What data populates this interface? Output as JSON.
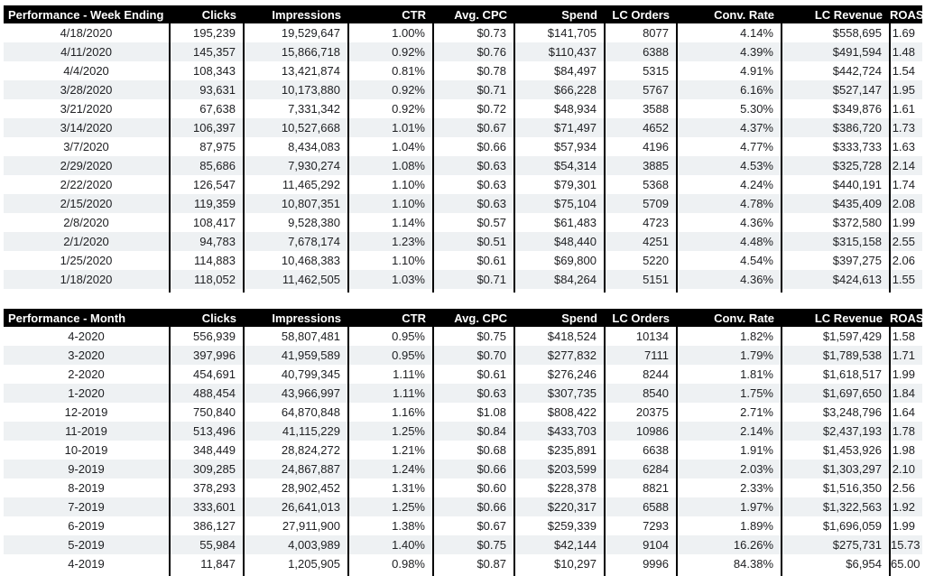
{
  "colors": {
    "header_bg": "#000000",
    "header_text": "#ffffff",
    "row_bg": "#ffffff",
    "row_alt": "#eef1f3",
    "grid_line": "#000000"
  },
  "chart_data": [
    {
      "type": "table",
      "title": "Performance - Week Ending",
      "columns": [
        "Clicks",
        "Impressions",
        "CTR",
        "Avg. CPC",
        "Spend",
        "LC Orders",
        "Conv. Rate",
        "LC Revenue",
        "ROAS"
      ],
      "rows": [
        [
          "4/18/2020",
          "195,239",
          "19,529,647",
          "1.00%",
          "$0.73",
          "$141,705",
          "8077",
          "4.14%",
          "$558,695",
          "1.69"
        ],
        [
          "4/11/2020",
          "145,357",
          "15,866,718",
          "0.92%",
          "$0.76",
          "$110,437",
          "6388",
          "4.39%",
          "$491,594",
          "1.48"
        ],
        [
          "4/4/2020",
          "108,343",
          "13,421,874",
          "0.81%",
          "$0.78",
          "$84,497",
          "5315",
          "4.91%",
          "$442,724",
          "1.54"
        ],
        [
          "3/28/2020",
          "93,631",
          "10,173,880",
          "0.92%",
          "$0.71",
          "$66,228",
          "5767",
          "6.16%",
          "$527,147",
          "1.95"
        ],
        [
          "3/21/2020",
          "67,638",
          "7,331,342",
          "0.92%",
          "$0.72",
          "$48,934",
          "3588",
          "5.30%",
          "$349,876",
          "1.61"
        ],
        [
          "3/14/2020",
          "106,397",
          "10,527,668",
          "1.01%",
          "$0.67",
          "$71,497",
          "4652",
          "4.37%",
          "$386,720",
          "1.73"
        ],
        [
          "3/7/2020",
          "87,975",
          "8,434,083",
          "1.04%",
          "$0.66",
          "$57,934",
          "4196",
          "4.77%",
          "$333,733",
          "1.63"
        ],
        [
          "2/29/2020",
          "85,686",
          "7,930,274",
          "1.08%",
          "$0.63",
          "$54,314",
          "3885",
          "4.53%",
          "$325,728",
          "2.14"
        ],
        [
          "2/22/2020",
          "126,547",
          "11,465,292",
          "1.10%",
          "$0.63",
          "$79,301",
          "5368",
          "4.24%",
          "$440,191",
          "1.74"
        ],
        [
          "2/15/2020",
          "119,359",
          "10,807,351",
          "1.10%",
          "$0.63",
          "$75,104",
          "5709",
          "4.78%",
          "$435,409",
          "2.08"
        ],
        [
          "2/8/2020",
          "108,417",
          "9,528,380",
          "1.14%",
          "$0.57",
          "$61,483",
          "4723",
          "4.36%",
          "$372,580",
          "1.99"
        ],
        [
          "2/1/2020",
          "94,783",
          "7,678,174",
          "1.23%",
          "$0.51",
          "$48,440",
          "4251",
          "4.48%",
          "$315,158",
          "2.55"
        ],
        [
          "1/25/2020",
          "114,883",
          "10,468,383",
          "1.10%",
          "$0.61",
          "$69,800",
          "5220",
          "4.54%",
          "$397,275",
          "2.06"
        ],
        [
          "1/18/2020",
          "118,052",
          "11,462,505",
          "1.03%",
          "$0.71",
          "$84,264",
          "5151",
          "4.36%",
          "$424,613",
          "1.55"
        ]
      ]
    },
    {
      "type": "table",
      "title": "Performance - Month",
      "columns": [
        "Clicks",
        "Impressions",
        "CTR",
        "Avg. CPC",
        "Spend",
        "LC Orders",
        "Conv. Rate",
        "LC Revenue",
        "ROAS"
      ],
      "rows": [
        [
          "4-2020",
          "556,939",
          "58,807,481",
          "0.95%",
          "$0.75",
          "$418,524",
          "10134",
          "1.82%",
          "$1,597,429",
          "1.58"
        ],
        [
          "3-2020",
          "397,996",
          "41,959,589",
          "0.95%",
          "$0.70",
          "$277,832",
          "7111",
          "1.79%",
          "$1,789,538",
          "1.71"
        ],
        [
          "2-2020",
          "454,691",
          "40,799,345",
          "1.11%",
          "$0.61",
          "$276,246",
          "8244",
          "1.81%",
          "$1,618,517",
          "1.99"
        ],
        [
          "1-2020",
          "488,454",
          "43,966,997",
          "1.11%",
          "$0.63",
          "$307,735",
          "8540",
          "1.75%",
          "$1,697,650",
          "1.84"
        ],
        [
          "12-2019",
          "750,840",
          "64,870,848",
          "1.16%",
          "$1.08",
          "$808,422",
          "20375",
          "2.71%",
          "$3,248,796",
          "1.64"
        ],
        [
          "11-2019",
          "513,496",
          "41,115,229",
          "1.25%",
          "$0.84",
          "$433,703",
          "10986",
          "2.14%",
          "$2,437,193",
          "1.78"
        ],
        [
          "10-2019",
          "348,449",
          "28,824,272",
          "1.21%",
          "$0.68",
          "$235,891",
          "6638",
          "1.91%",
          "$1,453,926",
          "1.98"
        ],
        [
          "9-2019",
          "309,285",
          "24,867,887",
          "1.24%",
          "$0.66",
          "$203,599",
          "6284",
          "2.03%",
          "$1,303,297",
          "2.10"
        ],
        [
          "8-2019",
          "378,293",
          "28,902,452",
          "1.31%",
          "$0.60",
          "$228,378",
          "8821",
          "2.33%",
          "$1,516,350",
          "2.56"
        ],
        [
          "7-2019",
          "333,601",
          "26,641,013",
          "1.25%",
          "$0.66",
          "$220,317",
          "6588",
          "1.97%",
          "$1,322,563",
          "1.92"
        ],
        [
          "6-2019",
          "386,127",
          "27,911,900",
          "1.38%",
          "$0.67",
          "$259,339",
          "7293",
          "1.89%",
          "$1,696,059",
          "1.99"
        ],
        [
          "5-2019",
          "55,984",
          "4,003,989",
          "1.40%",
          "$0.75",
          "$42,144",
          "9104",
          "16.26%",
          "$275,731",
          "15.73"
        ],
        [
          "4-2019",
          "11,847",
          "1,205,905",
          "0.98%",
          "$0.87",
          "$10,297",
          "9996",
          "84.38%",
          "$6,954",
          "65.00"
        ]
      ]
    }
  ]
}
